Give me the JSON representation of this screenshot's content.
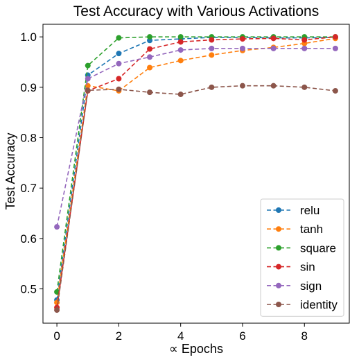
{
  "chart_data": {
    "type": "line",
    "title": "Test Accuracy with Various Activations",
    "xlabel": "∝ Epochs",
    "ylabel": "Test Accuracy",
    "xlim": [
      -0.45,
      9.45
    ],
    "ylim": [
      0.432,
      1.025
    ],
    "xticks": [
      0,
      2,
      4,
      6,
      8
    ],
    "yticks": [
      0.5,
      0.6,
      0.7,
      0.8,
      0.9,
      1.0
    ],
    "ytick_labels": [
      "0.5",
      "0.6",
      "0.7",
      "0.8",
      "0.9",
      "1.0"
    ],
    "grid": false,
    "legend_position": "lower-right",
    "line_style": "dashed",
    "marker": "circle",
    "x": [
      0,
      1,
      2,
      3,
      4,
      5,
      6,
      7,
      8,
      9
    ],
    "series": [
      {
        "name": "relu",
        "color": "#1f77b4",
        "values": [
          0.478,
          0.924,
          0.967,
          0.993,
          0.996,
          0.999,
          0.999,
          0.998,
          0.998,
          0.999
        ]
      },
      {
        "name": "tanh",
        "color": "#ff7f0e",
        "values": [
          0.473,
          0.903,
          0.893,
          0.939,
          0.953,
          0.964,
          0.973,
          0.979,
          0.987,
          0.997
        ]
      },
      {
        "name": "square",
        "color": "#2ca02c",
        "values": [
          0.494,
          0.943,
          0.998,
          1.0,
          1.0,
          1.0,
          1.0,
          1.0,
          1.0,
          1.0
        ]
      },
      {
        "name": "sin",
        "color": "#d62728",
        "values": [
          0.463,
          0.893,
          0.917,
          0.976,
          0.99,
          0.994,
          0.996,
          0.997,
          0.994,
          1.0
        ]
      },
      {
        "name": "sign",
        "color": "#9467bd",
        "values": [
          0.623,
          0.917,
          0.947,
          0.96,
          0.974,
          0.977,
          0.977,
          0.977,
          0.977,
          0.977
        ]
      },
      {
        "name": "identity",
        "color": "#8c564b",
        "values": [
          0.458,
          0.894,
          0.896,
          0.89,
          0.886,
          0.9,
          0.903,
          0.903,
          0.9,
          0.893
        ]
      }
    ]
  }
}
